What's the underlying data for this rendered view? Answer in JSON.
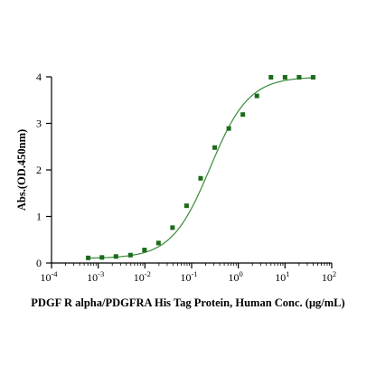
{
  "chart_data": {
    "type": "scatter",
    "xlabel": "PDGF R alpha/PDGFRA His Tag Protein, Human Conc. (μg/mL)",
    "ylabel": "Abs.(OD.450nm)",
    "x_scale": "log",
    "xlim": [
      0.0001,
      100
    ],
    "ylim": [
      0,
      4
    ],
    "x_ticks": [
      {
        "value": 0.0001,
        "base": "10",
        "exp": "-4"
      },
      {
        "value": 0.001,
        "base": "10",
        "exp": "-3"
      },
      {
        "value": 0.01,
        "base": "10",
        "exp": "-2"
      },
      {
        "value": 0.1,
        "base": "10",
        "exp": "-1"
      },
      {
        "value": 1,
        "base": "10",
        "exp": "0"
      },
      {
        "value": 10,
        "base": "10",
        "exp": "1"
      },
      {
        "value": 100,
        "base": "10",
        "exp": "2"
      }
    ],
    "y_ticks": [
      "0",
      "1",
      "2",
      "3",
      "4"
    ],
    "grid": false,
    "series": [
      {
        "marker_color": "#1a6b1a",
        "curve_color": "#3a8a3a",
        "x": [
          0.00061,
          0.0012,
          0.0024,
          0.0049,
          0.0098,
          0.0195,
          0.039,
          0.078,
          0.156,
          0.3125,
          0.625,
          1.25,
          2.5,
          5,
          10,
          20,
          40
        ],
        "y": [
          0.11,
          0.12,
          0.14,
          0.17,
          0.28,
          0.43,
          0.76,
          1.23,
          1.82,
          2.48,
          2.89,
          3.19,
          3.59,
          3.99,
          3.99,
          3.99,
          3.99
        ]
      }
    ],
    "fit_curve": {
      "model": "4PL",
      "bottom": 0.1,
      "top": 4.0,
      "ec50": 0.25,
      "hill": 1.05
    }
  }
}
